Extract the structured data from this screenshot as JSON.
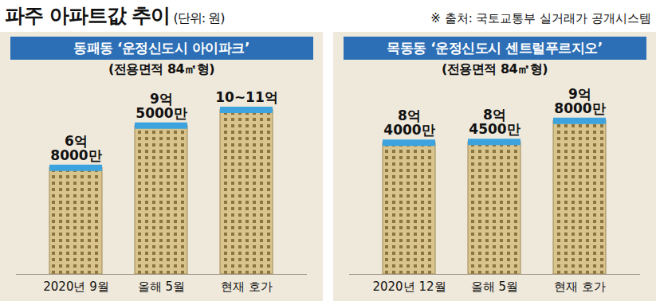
{
  "title": "파주 아파트값 추이",
  "unit": "(단위: 원)",
  "source": "※ 출처: 국토교통부 실거래가 공개시스템",
  "chart_data": [
    {
      "type": "bar",
      "title": "동패동 ‘운정신도시 아이파크’",
      "subtitle": "(전용면적 84㎡형)",
      "categories": [
        "2020년 9월",
        "올해 5월",
        "현재 호가"
      ],
      "values": [
        680000000,
        950000000,
        1050000000
      ],
      "value_labels": [
        "6억 8000만",
        "9억 5000만",
        "10~11억"
      ],
      "color": "#d8c48c",
      "ylim": [
        0,
        1200000000
      ],
      "data_labels": true,
      "tick_labels": "x"
    },
    {
      "type": "bar",
      "title": "목동동 ‘운정신도시 센트럴푸르지오’",
      "subtitle": "(전용면적 84㎡형)",
      "categories": [
        "2020년 12월",
        "올해 5월",
        "현재 호가"
      ],
      "values": [
        840000000,
        845000000,
        980000000
      ],
      "value_labels": [
        "8억 4000만",
        "8억 4500만",
        "9억 8000만"
      ],
      "color": "#d8c48c",
      "ylim": [
        0,
        1200000000
      ],
      "data_labels": true,
      "tick_labels": "x"
    }
  ]
}
